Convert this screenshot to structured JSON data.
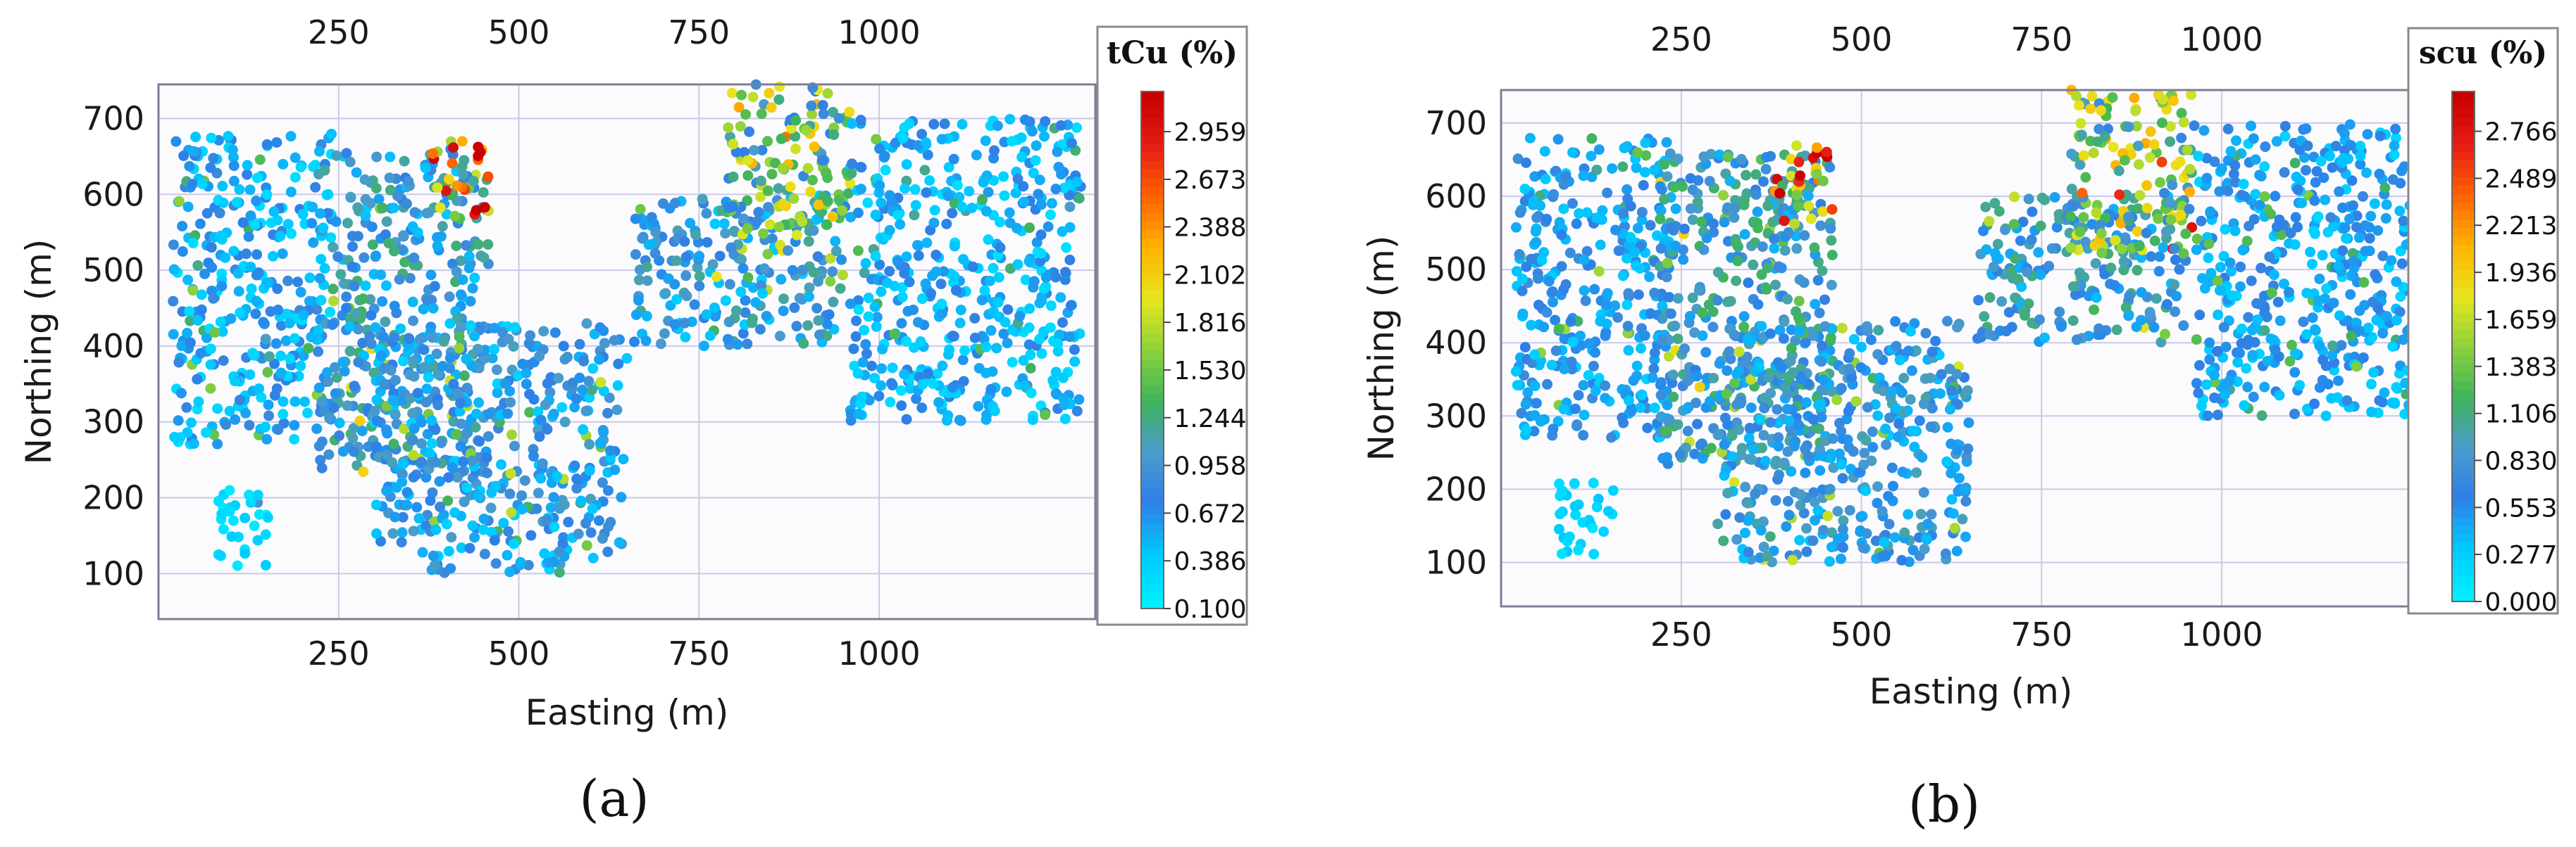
{
  "chart_data": [
    {
      "type": "scatter",
      "panel_label": "(a)",
      "xlabel": "Easting (m)",
      "ylabel": "Northing (m)",
      "xlim": [
        0,
        1300
      ],
      "ylim": [
        40,
        745
      ],
      "x_ticks": [
        250,
        500,
        750,
        1000
      ],
      "y_ticks": [
        100,
        200,
        300,
        400,
        500,
        600,
        700
      ],
      "top_x_ticks": [
        250,
        500,
        750,
        1000
      ],
      "grid": true,
      "colorbar": {
        "title": "tCu (%)",
        "min": 0.1,
        "max": 3.2,
        "ticks": [
          "2.959",
          "2.673",
          "2.388",
          "2.102",
          "1.816",
          "1.530",
          "1.244",
          "0.958",
          "0.672",
          "0.386",
          "0.100"
        ],
        "tick_values": [
          2.959,
          2.673,
          2.388,
          2.102,
          1.816,
          1.53,
          1.244,
          0.958,
          0.672,
          0.386,
          0.1
        ],
        "colors": [
          "#00f0ff",
          "#00c8ff",
          "#2f7fe6",
          "#4a9ccc",
          "#3fb45a",
          "#8cd23c",
          "#e6e61e",
          "#ffb400",
          "#ff6400",
          "#e61e14",
          "#c80000"
        ]
      },
      "series": [
        {
          "regions": [
            {
              "x": [
                20,
                240
              ],
              "y": [
                270,
                680
              ],
              "level": 0.55
            },
            {
              "x": [
                80,
                160
              ],
              "y": [
                110,
                210
              ],
              "level": 0.25
            },
            {
              "x": [
                220,
                460
              ],
              "y": [
                230,
                660
              ],
              "level": 0.85
            },
            {
              "x": [
                380,
                460
              ],
              "y": [
                560,
                670
              ],
              "level": 2.1
            },
            {
              "x": [
                300,
                650
              ],
              "y": [
                100,
                430
              ],
              "level": 0.7
            },
            {
              "x": [
                660,
                950
              ],
              "y": [
                400,
                600
              ],
              "level": 0.8
            },
            {
              "x": [
                790,
                960
              ],
              "y": [
                520,
                745
              ],
              "level": 1.5
            },
            {
              "x": [
                960,
                1280
              ],
              "y": [
                300,
                700
              ],
              "level": 0.5
            }
          ]
        }
      ]
    },
    {
      "type": "scatter",
      "panel_label": "(b)",
      "xlabel": "Easting (m)",
      "ylabel": "Northing (m)",
      "xlim": [
        0,
        1300
      ],
      "ylim": [
        40,
        745
      ],
      "x_ticks": [
        250,
        500,
        750,
        1000
      ],
      "y_ticks": [
        100,
        200,
        300,
        400,
        500,
        600,
        700
      ],
      "top_x_ticks": [
        250,
        500,
        750,
        1000
      ],
      "grid": true,
      "colorbar": {
        "title": "scu (%)",
        "min": 0.0,
        "max": 3.0,
        "ticks": [
          "2.766",
          "2.489",
          "2.213",
          "1.936",
          "1.659",
          "1.383",
          "1.106",
          "0.830",
          "0.553",
          "0.277",
          "0.000"
        ],
        "tick_values": [
          2.766,
          2.489,
          2.213,
          1.936,
          1.659,
          1.383,
          1.106,
          0.83,
          0.553,
          0.277,
          0.0
        ],
        "colors": [
          "#00f0ff",
          "#00c8ff",
          "#2f7fe6",
          "#4a9ccc",
          "#3fb45a",
          "#8cd23c",
          "#e6e61e",
          "#ffb400",
          "#ff6400",
          "#e61e14",
          "#c80000"
        ]
      },
      "series": [
        {
          "regions": [
            {
              "x": [
                20,
                240
              ],
              "y": [
                270,
                680
              ],
              "level": 0.5
            },
            {
              "x": [
                80,
                160
              ],
              "y": [
                110,
                210
              ],
              "level": 0.2
            },
            {
              "x": [
                220,
                460
              ],
              "y": [
                230,
                660
              ],
              "level": 0.8
            },
            {
              "x": [
                380,
                460
              ],
              "y": [
                560,
                670
              ],
              "level": 2.0
            },
            {
              "x": [
                300,
                650
              ],
              "y": [
                100,
                430
              ],
              "level": 0.65
            },
            {
              "x": [
                660,
                950
              ],
              "y": [
                400,
                600
              ],
              "level": 0.75
            },
            {
              "x": [
                790,
                960
              ],
              "y": [
                520,
                745
              ],
              "level": 1.4
            },
            {
              "x": [
                960,
                1280
              ],
              "y": [
                300,
                700
              ],
              "level": 0.45
            }
          ]
        }
      ]
    }
  ]
}
